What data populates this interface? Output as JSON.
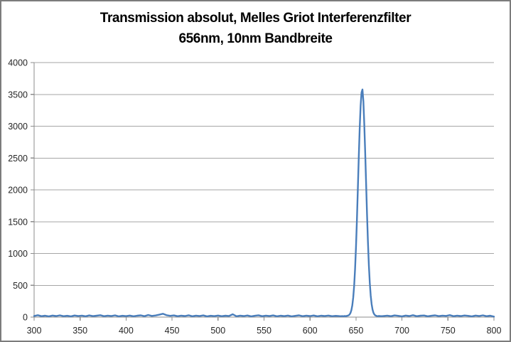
{
  "chart_data": {
    "type": "line",
    "title": "Transmission absolut, Melles Griot Interferenzfilter 656nm, 10nm Bandbreite",
    "title_line1": "Transmission absolut, Melles Griot Interferenzfilter",
    "title_line2": "656nm, 10nm Bandbreite",
    "xlabel": "",
    "ylabel": "",
    "xlim": [
      300,
      800
    ],
    "ylim": [
      0,
      4000
    ],
    "x_ticks": [
      300,
      350,
      400,
      450,
      500,
      550,
      600,
      650,
      700,
      750,
      800
    ],
    "y_ticks": [
      0,
      500,
      1000,
      1500,
      2000,
      2500,
      3000,
      3500,
      4000
    ],
    "grid": true,
    "legend": "none",
    "peak": {
      "center_nm": 656.6,
      "max_value": 3578,
      "fwhm_nm": 10
    },
    "series": [
      {
        "name": "Transmission absolut",
        "color": "#4a7ebb",
        "points": [
          [
            300,
            18
          ],
          [
            304,
            30
          ],
          [
            308,
            14
          ],
          [
            312,
            22
          ],
          [
            316,
            12
          ],
          [
            320,
            25
          ],
          [
            324,
            17
          ],
          [
            328,
            28
          ],
          [
            332,
            15
          ],
          [
            336,
            21
          ],
          [
            340,
            12
          ],
          [
            344,
            26
          ],
          [
            348,
            18
          ],
          [
            352,
            23
          ],
          [
            356,
            13
          ],
          [
            360,
            27
          ],
          [
            364,
            16
          ],
          [
            368,
            22
          ],
          [
            372,
            30
          ],
          [
            376,
            14
          ],
          [
            380,
            24
          ],
          [
            384,
            18
          ],
          [
            388,
            28
          ],
          [
            392,
            12
          ],
          [
            396,
            21
          ],
          [
            400,
            16
          ],
          [
            404,
            25
          ],
          [
            408,
            13
          ],
          [
            412,
            22
          ],
          [
            416,
            28
          ],
          [
            420,
            15
          ],
          [
            424,
            33
          ],
          [
            428,
            19
          ],
          [
            432,
            26
          ],
          [
            436,
            38
          ],
          [
            440,
            52
          ],
          [
            444,
            30
          ],
          [
            448,
            20
          ],
          [
            452,
            27
          ],
          [
            456,
            14
          ],
          [
            460,
            23
          ],
          [
            464,
            17
          ],
          [
            468,
            29
          ],
          [
            472,
            13
          ],
          [
            476,
            24
          ],
          [
            480,
            18
          ],
          [
            484,
            27
          ],
          [
            488,
            12
          ],
          [
            492,
            21
          ],
          [
            496,
            16
          ],
          [
            500,
            25
          ],
          [
            504,
            14
          ],
          [
            508,
            22
          ],
          [
            512,
            18
          ],
          [
            516,
            45
          ],
          [
            520,
            13
          ],
          [
            524,
            23
          ],
          [
            528,
            17
          ],
          [
            532,
            26
          ],
          [
            536,
            12
          ],
          [
            540,
            21
          ],
          [
            544,
            29
          ],
          [
            548,
            15
          ],
          [
            552,
            24
          ],
          [
            556,
            18
          ],
          [
            560,
            27
          ],
          [
            564,
            13
          ],
          [
            568,
            22
          ],
          [
            572,
            16
          ],
          [
            576,
            25
          ],
          [
            580,
            12
          ],
          [
            584,
            20
          ],
          [
            588,
            28
          ],
          [
            592,
            15
          ],
          [
            596,
            23
          ],
          [
            600,
            17
          ],
          [
            604,
            26
          ],
          [
            608,
            13
          ],
          [
            612,
            22
          ],
          [
            616,
            18
          ],
          [
            620,
            25
          ],
          [
            624,
            14
          ],
          [
            628,
            20
          ],
          [
            632,
            16
          ],
          [
            634,
            14
          ],
          [
            635,
            17
          ],
          [
            636,
            13
          ],
          [
            637,
            16
          ],
          [
            638,
            18
          ],
          [
            639,
            15
          ],
          [
            640,
            20
          ],
          [
            641,
            23
          ],
          [
            642,
            28
          ],
          [
            643,
            40
          ],
          [
            644,
            64
          ],
          [
            645,
            108
          ],
          [
            646,
            184
          ],
          [
            647,
            308
          ],
          [
            648,
            492
          ],
          [
            649,
            756
          ],
          [
            650,
            1102
          ],
          [
            651,
            1530
          ],
          [
            652,
            2012
          ],
          [
            653,
            2510
          ],
          [
            654,
            2965
          ],
          [
            655,
            3320
          ],
          [
            656,
            3530
          ],
          [
            657,
            3578
          ],
          [
            658,
            3390
          ],
          [
            659,
            3048
          ],
          [
            660,
            2605
          ],
          [
            661,
            2112
          ],
          [
            662,
            1624
          ],
          [
            663,
            1184
          ],
          [
            664,
            818
          ],
          [
            665,
            538
          ],
          [
            666,
            338
          ],
          [
            667,
            203
          ],
          [
            668,
            118
          ],
          [
            669,
            68
          ],
          [
            670,
            41
          ],
          [
            671,
            27
          ],
          [
            672,
            20
          ],
          [
            673,
            17
          ],
          [
            674,
            15
          ],
          [
            675,
            19
          ],
          [
            676,
            14
          ],
          [
            677,
            17
          ],
          [
            678,
            15
          ],
          [
            680,
            18
          ],
          [
            684,
            24
          ],
          [
            688,
            14
          ],
          [
            692,
            27
          ],
          [
            696,
            20
          ],
          [
            700,
            12
          ],
          [
            704,
            25
          ],
          [
            708,
            17
          ],
          [
            712,
            30
          ],
          [
            716,
            15
          ],
          [
            720,
            22
          ],
          [
            724,
            26
          ],
          [
            728,
            13
          ],
          [
            732,
            21
          ],
          [
            736,
            28
          ],
          [
            740,
            16
          ],
          [
            744,
            24
          ],
          [
            748,
            19
          ],
          [
            752,
            31
          ],
          [
            756,
            14
          ],
          [
            760,
            23
          ],
          [
            764,
            17
          ],
          [
            768,
            26
          ],
          [
            772,
            20
          ],
          [
            776,
            12
          ],
          [
            780,
            25
          ],
          [
            784,
            18
          ],
          [
            788,
            28
          ],
          [
            792,
            15
          ],
          [
            796,
            22
          ],
          [
            800,
            8
          ]
        ]
      }
    ],
    "colors": {
      "series_line": "#4a7ebb",
      "gridline": "#a6a6a6",
      "axis_line": "#8c8c8c",
      "tick_label": "#262626",
      "title_text": "#000000",
      "outer_border": "#7c7c7c",
      "background": "#ffffff"
    }
  }
}
